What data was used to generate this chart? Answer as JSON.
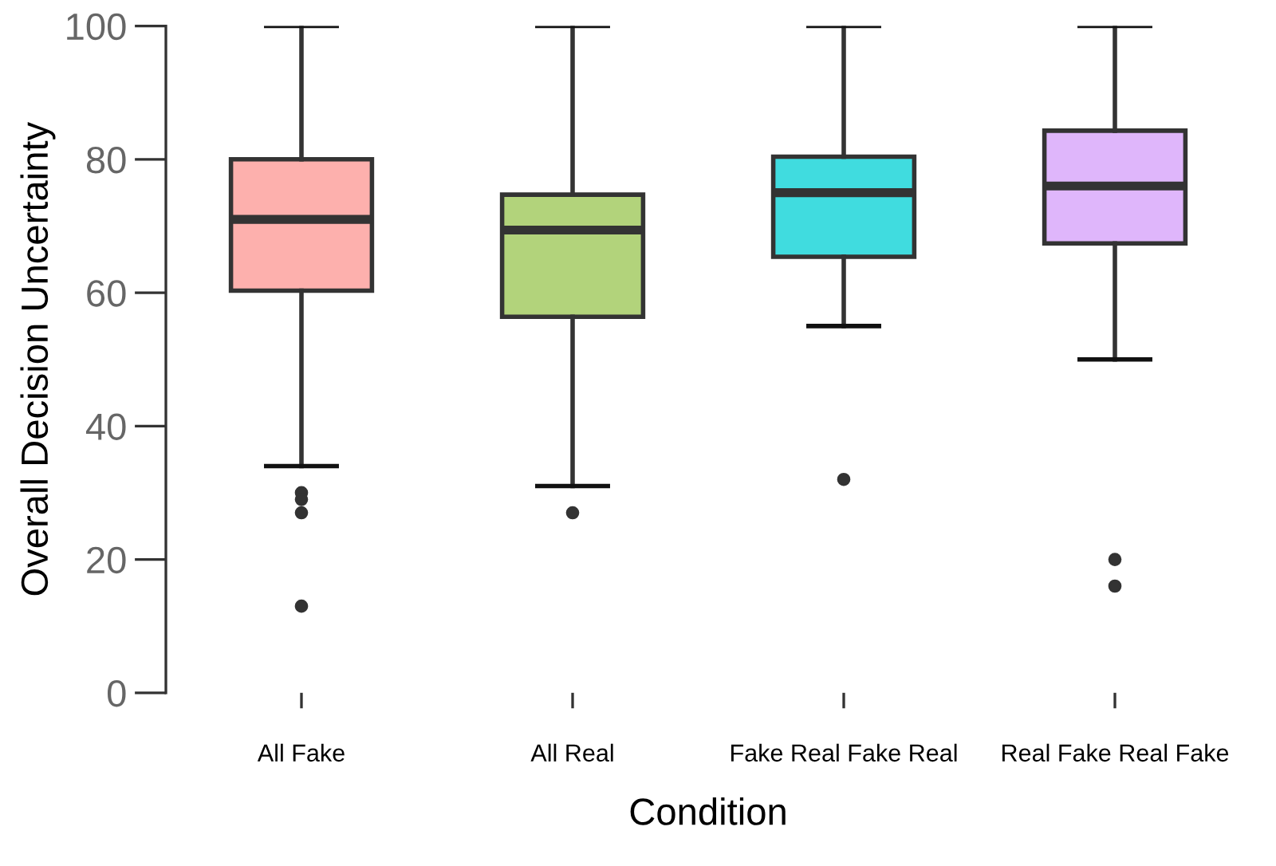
{
  "chart_data": {
    "type": "box",
    "xlabel": "Condition",
    "ylabel": "Overall Decision Uncertainty",
    "categories": [
      "All Fake",
      "All Real",
      "Fake Real Fake Real",
      "Real Fake Real Fake"
    ],
    "colors": [
      "#fdb0ad",
      "#b2d37b",
      "#40dcdf",
      "#dfb6fb"
    ],
    "boxes": [
      {
        "low": 34,
        "q1": 60.3,
        "median": 71,
        "q3": 80,
        "high": 100,
        "outliers": [
          30,
          29,
          27,
          13
        ]
      },
      {
        "low": 31,
        "q1": 56.4,
        "median": 69.4,
        "q3": 74.7,
        "high": 100,
        "outliers": [
          27
        ]
      },
      {
        "low": 55,
        "q1": 65.4,
        "median": 75,
        "q3": 80.4,
        "high": 100,
        "outliers": [
          32
        ]
      },
      {
        "low": 50,
        "q1": 67.4,
        "median": 76,
        "q3": 84.3,
        "high": 100,
        "outliers": [
          20,
          16
        ]
      }
    ],
    "ylim": [
      0,
      100
    ],
    "yticks": [
      0,
      20,
      40,
      60,
      80,
      100
    ],
    "grid": false
  }
}
